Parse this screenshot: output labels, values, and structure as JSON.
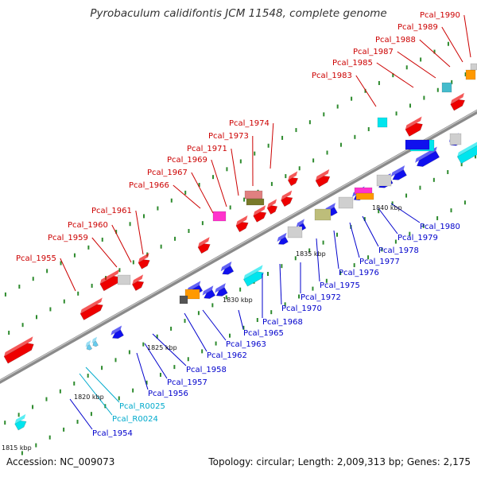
{
  "title": "Pyrobaculum calidifontis JCM 11548, complete genome",
  "footer": {
    "accession": "Accession: NC_009073",
    "stats": "Topology: circular; Length: 2,009,313 bp; Genes: 2,175"
  },
  "colors": {
    "backbone": "#888888",
    "tick": "#2e8b2e",
    "label_red": "#cc0000",
    "label_blue": "#0000cc",
    "label_cyan": "#00aacc",
    "feature_red": "#ee0000",
    "feature_blue": "#1010ee",
    "feature_cyan": "#00e5ee",
    "feature_grey": "#cfcfcf",
    "feature_orange": "#ff9900",
    "feature_magenta": "#ff33cc",
    "feature_olive": "#bdbd7a",
    "feature_dark": "#555555"
  },
  "scale_labels": [
    "1815 kbp",
    "1820 kbp",
    "1825 kbp",
    "1830 kbp",
    "1835 kbp",
    "1840 kbp"
  ],
  "gene_labels_top": [
    "Pcal_1955",
    "Pcal_1959",
    "Pcal_1960",
    "Pcal_1961",
    "Pcal_1966",
    "Pcal_1967",
    "Pcal_1969",
    "Pcal_1971",
    "Pcal_1973",
    "Pcal_1974",
    "Pcal_1983",
    "Pcal_1985",
    "Pcal_1987",
    "Pcal_1988",
    "Pcal_1989",
    "Pcal_1990"
  ],
  "gene_labels_bottom": [
    "Pcal_1954",
    "Pcal_R0024",
    "Pcal_R0025",
    "Pcal_1956",
    "Pcal_1957",
    "Pcal_1958",
    "Pcal_1962",
    "Pcal_1963",
    "Pcal_1965",
    "Pcal_1968",
    "Pcal_1970",
    "Pcal_1972",
    "Pcal_1975",
    "Pcal_1976",
    "Pcal_1977",
    "Pcal_1978",
    "Pcal_1979",
    "Pcal_1980"
  ]
}
